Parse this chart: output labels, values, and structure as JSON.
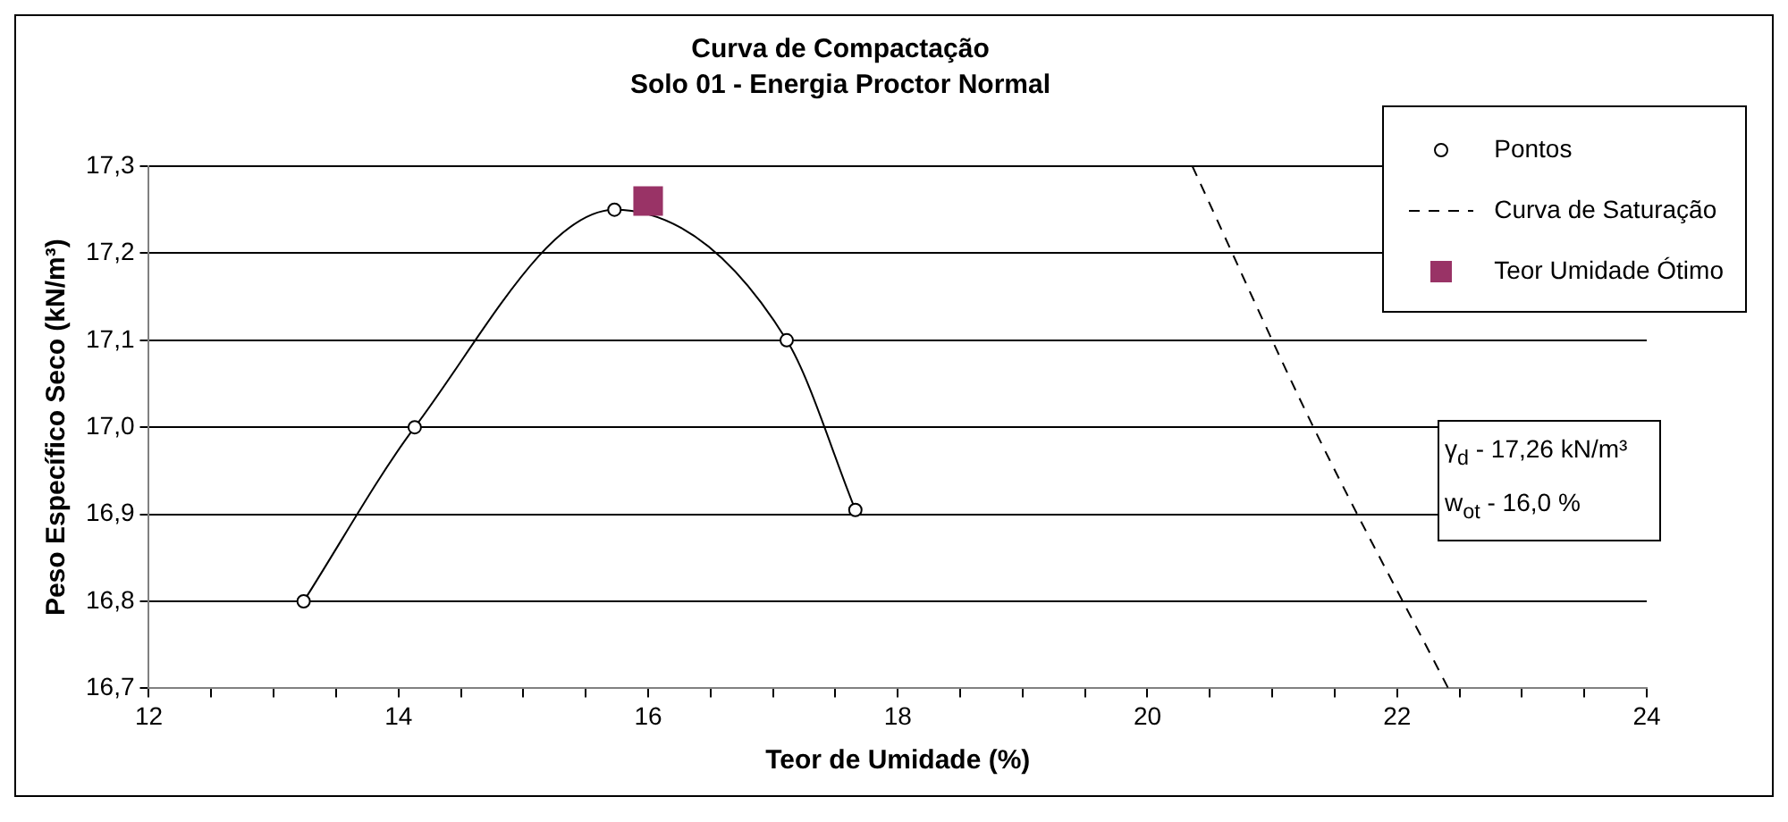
{
  "chart_data": {
    "type": "line",
    "title": "Curva de Compactação",
    "subtitle": "Solo 01 - Energia Proctor Normal",
    "xlabel": "Teor de Umidade (%)",
    "ylabel": "Peso Específico Seco (kN/m³)",
    "series": [
      {
        "name": "Pontos",
        "type": "line",
        "color": "#000000",
        "marker": "circle",
        "line_style": "solid",
        "x": [
          13.24,
          14.13,
          15.73,
          17.11,
          17.66
        ],
        "values": [
          16.8,
          17.0,
          17.25,
          17.1,
          16.905
        ]
      },
      {
        "name": "Curva de Saturação",
        "type": "line",
        "color": "#000000",
        "marker": "none",
        "line_style": "dashed",
        "x": [
          20.36,
          21.33,
          22.41
        ],
        "values": [
          17.3,
          17.0,
          16.7
        ]
      },
      {
        "name": "Teor Umidade Ótimo",
        "type": "scatter",
        "color": "#993366",
        "marker": "square",
        "x": [
          16.0
        ],
        "values": [
          17.26
        ]
      }
    ],
    "xlim": [
      12,
      24
    ],
    "xticks": [
      12,
      {
        "value": 12.5,
        "label": null
      },
      {
        "value": 13,
        "label": null
      },
      {
        "value": 13.5,
        "label": null
      },
      14,
      {
        "value": 14.5,
        "label": null
      },
      {
        "value": 15,
        "label": null
      },
      {
        "value": 15.5,
        "label": null
      },
      16,
      {
        "value": 16.5,
        "label": null
      },
      {
        "value": 17,
        "label": null
      },
      {
        "value": 17.5,
        "label": null
      },
      18,
      {
        "value": 18.5,
        "label": null
      },
      {
        "value": 19,
        "label": null
      },
      {
        "value": 19.5,
        "label": null
      },
      20,
      {
        "value": 20.5,
        "label": null
      },
      {
        "value": 21,
        "label": null
      },
      {
        "value": 21.5,
        "label": null
      },
      22,
      {
        "value": 22.5,
        "label": null
      },
      {
        "value": 23,
        "label": null
      },
      {
        "value": 23.5,
        "label": null
      },
      24
    ],
    "ylim": [
      16.7,
      17.3
    ],
    "yticks": [
      {
        "value": 16.7,
        "label": "16,7"
      },
      {
        "value": 16.8,
        "label": "16,8"
      },
      {
        "value": 16.9,
        "label": "16,9"
      },
      {
        "value": 17.0,
        "label": "17,0"
      },
      {
        "value": 17.1,
        "label": "17,1"
      },
      {
        "value": 17.2,
        "label": "17,2"
      },
      {
        "value": 17.3,
        "label": "17,3"
      }
    ],
    "grid": "y",
    "legend": "top right",
    "annotations": [
      "γ$_{d}$ - 17,26 kN/m³",
      "w$_{ot}$ - 16,0 %"
    ]
  }
}
